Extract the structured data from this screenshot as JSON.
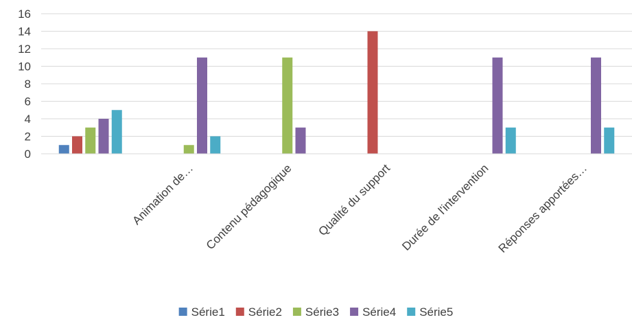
{
  "chart_data": {
    "type": "bar",
    "title": "",
    "xlabel": "",
    "ylabel": "",
    "ylim": [
      0,
      16
    ],
    "ytick_step": 2,
    "yticks": [
      "0",
      "2",
      "4",
      "6",
      "8",
      "10",
      "12",
      "14",
      "16"
    ],
    "grid": true,
    "legend_position": "bottom",
    "categories": [
      "",
      "Animation de…",
      "Contenu pédagogique",
      "Qualité du support",
      "Durée de l'intervention",
      "Réponses apportées…"
    ],
    "series": [
      {
        "name": "Série1",
        "color": "#4F81BD",
        "values": [
          1,
          0,
          0,
          0,
          0,
          0
        ]
      },
      {
        "name": "Série2",
        "color": "#C0504D",
        "values": [
          2,
          0,
          0,
          14,
          0,
          0
        ]
      },
      {
        "name": "Série3",
        "color": "#9BBB59",
        "values": [
          3,
          1,
          11,
          0,
          0,
          0
        ]
      },
      {
        "name": "Série4",
        "color": "#8064A2",
        "values": [
          4,
          11,
          3,
          0,
          11,
          11
        ]
      },
      {
        "name": "Série5",
        "color": "#4BACC6",
        "values": [
          5,
          2,
          0,
          0,
          3,
          3
        ]
      }
    ]
  }
}
